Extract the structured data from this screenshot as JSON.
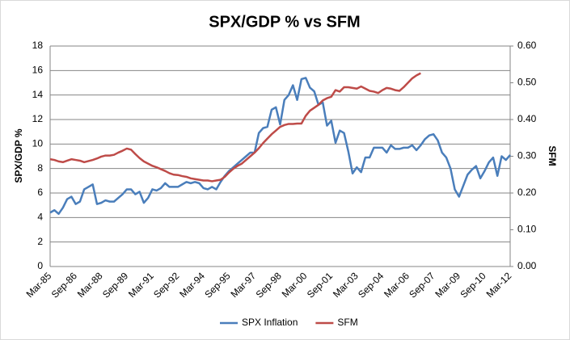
{
  "chart_data": {
    "type": "line",
    "title": "SPX/GDP % vs SFM",
    "y_label": "SPX/GDP %",
    "y2_label": "SFM",
    "categories": [
      "Mar-85",
      null,
      null,
      null,
      null,
      null,
      "Sep-86",
      null,
      null,
      null,
      null,
      null,
      "Mar-88",
      null,
      null,
      null,
      null,
      null,
      "Sep-89",
      null,
      null,
      null,
      null,
      null,
      "Mar-91",
      null,
      null,
      null,
      null,
      null,
      "Sep-92",
      null,
      null,
      null,
      null,
      null,
      "Mar-94",
      null,
      null,
      null,
      null,
      null,
      "Sep-95",
      null,
      null,
      null,
      null,
      null,
      "Mar-97",
      null,
      null,
      null,
      null,
      null,
      "Sep-98",
      null,
      null,
      null,
      null,
      null,
      "Mar-00",
      null,
      null,
      null,
      null,
      null,
      "Sep-01",
      null,
      null,
      null,
      null,
      null,
      "Mar-03",
      null,
      null,
      null,
      null,
      null,
      "Sep-04",
      null,
      null,
      null,
      null,
      null,
      "Mar-06",
      null,
      null,
      null,
      null,
      null,
      "Sep-07",
      null,
      null,
      null,
      null,
      null,
      "Mar-09",
      null,
      null,
      null,
      null,
      null,
      "Sep-10",
      null,
      null,
      null,
      null,
      null,
      "Mar-12"
    ],
    "series": [
      {
        "name": "SPX Inflation",
        "color": "#4a7ebb",
        "values": [
          4.4,
          4.6,
          4.3,
          4.8,
          5.5,
          5.7,
          5.1,
          5.3,
          6.3,
          6.5,
          6.7,
          5.1,
          5.2,
          5.4,
          5.3,
          5.3,
          5.6,
          5.9,
          6.3,
          6.3,
          5.9,
          6.1,
          5.2,
          5.6,
          6.3,
          6.2,
          6.4,
          6.8,
          6.5,
          6.5,
          6.5,
          6.7,
          6.9,
          6.8,
          6.9,
          6.8,
          6.4,
          6.3,
          6.5,
          6.3,
          6.9,
          7.4,
          7.8,
          8.1,
          8.4,
          8.7,
          9.0,
          9.3,
          9.3,
          10.9,
          11.3,
          11.4,
          12.8,
          13.0,
          11.6,
          13.6,
          14.0,
          14.8,
          13.6,
          15.3,
          15.4,
          14.6,
          14.3,
          13.2,
          13.4,
          11.5,
          11.9,
          10.1,
          11.1,
          10.9,
          9.4,
          7.6,
          8.1,
          7.7,
          8.9,
          8.9,
          9.7,
          9.7,
          9.7,
          9.3,
          9.9,
          9.6,
          9.6,
          9.7,
          9.7,
          9.9,
          9.5,
          9.9,
          10.4,
          10.7,
          10.8,
          10.3,
          9.3,
          8.9,
          8.0,
          6.3,
          5.7,
          6.6,
          7.5,
          7.9,
          8.2,
          7.2,
          7.8,
          8.5,
          8.9,
          7.4,
          9.0,
          8.7,
          9.1
        ]
      },
      {
        "name": "SFM",
        "color": "#be4b48",
        "axis": "y2",
        "values": [
          0.292,
          0.29,
          0.286,
          0.284,
          0.288,
          0.292,
          0.29,
          0.288,
          0.284,
          0.287,
          0.29,
          0.294,
          0.299,
          0.302,
          0.302,
          0.304,
          0.31,
          0.315,
          0.321,
          0.318,
          0.306,
          0.295,
          0.286,
          0.28,
          0.274,
          0.27,
          0.265,
          0.26,
          0.254,
          0.25,
          0.249,
          0.246,
          0.244,
          0.24,
          0.238,
          0.236,
          0.234,
          0.234,
          0.232,
          0.234,
          0.236,
          0.244,
          0.256,
          0.266,
          0.274,
          0.28,
          0.29,
          0.3,
          0.31,
          0.322,
          0.336,
          0.348,
          0.36,
          0.37,
          0.38,
          0.385,
          0.388,
          0.388,
          0.389,
          0.389,
          0.41,
          0.424,
          0.432,
          0.44,
          0.452,
          0.458,
          0.462,
          0.48,
          0.476,
          0.488,
          0.488,
          0.486,
          0.484,
          0.49,
          0.484,
          0.478,
          0.476,
          0.472,
          0.48,
          0.486,
          0.484,
          0.48,
          0.478,
          0.488,
          0.5,
          0.512,
          0.52,
          0.526,
          null,
          null,
          null,
          null,
          null,
          null,
          null,
          null,
          null,
          null,
          null,
          null,
          null,
          null,
          null,
          null,
          null,
          null,
          null,
          null,
          null
        ]
      }
    ],
    "ylim": [
      0,
      18
    ],
    "yticks": [
      0,
      2,
      4,
      6,
      8,
      10,
      12,
      14,
      16,
      18
    ],
    "y2lim": [
      0,
      0.6
    ],
    "y2ticks": [
      {
        "value": 0,
        "label": "0.00"
      },
      {
        "value": 0.1,
        "label": "0.10"
      },
      {
        "value": 0.2,
        "label": "0.20"
      },
      {
        "value": 0.3,
        "label": "0.30"
      },
      {
        "value": 0.4,
        "label": "0.40"
      },
      {
        "value": 0.5,
        "label": "0.50"
      },
      {
        "value": 0.6,
        "label": "0.60"
      }
    ],
    "grid": true,
    "legend": "bottom"
  }
}
